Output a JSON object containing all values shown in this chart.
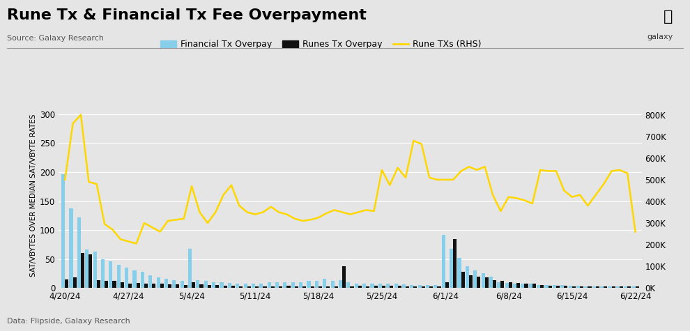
{
  "title": "Rune Tx & Financial Tx Fee Overpayment",
  "source": "Source: Galaxy Research",
  "footnote": "Data: Flipside, Galaxy Research",
  "ylabel_left": "SAT/VBYTES OVER MEDIAN SAT/VBYTE RATES",
  "legend": [
    "Financial Tx Overpay",
    "Runes Tx Overpay",
    "Rune TXs (RHS)"
  ],
  "background_color": "#e5e5e5",
  "ylim_left": [
    0,
    320
  ],
  "ylim_right": [
    0,
    856000
  ],
  "yticks_left": [
    0,
    50,
    100,
    150,
    200,
    250,
    300
  ],
  "yticks_right": [
    0,
    100000,
    200000,
    300000,
    400000,
    500000,
    600000,
    700000,
    800000
  ],
  "ytick_labels_right": [
    "0K",
    "100K",
    "200K",
    "300K",
    "400K",
    "500K",
    "600K",
    "700K",
    "800K"
  ],
  "xtick_labels": [
    "4/20/24",
    "4/27/24",
    "5/4/24",
    "5/11/24",
    "5/18/24",
    "5/25/24",
    "6/1/24",
    "6/8/24",
    "6/15/24",
    "6/22/24"
  ],
  "financial_tx_overpay": [
    196,
    138,
    122,
    67,
    63,
    50,
    46,
    40,
    35,
    30,
    28,
    22,
    18,
    16,
    14,
    12,
    68,
    14,
    12,
    10,
    10,
    9,
    8,
    8,
    7,
    8,
    10,
    10,
    10,
    10,
    10,
    12,
    12,
    16,
    12,
    14,
    10,
    8,
    8,
    8,
    8,
    7,
    7,
    6,
    5,
    5,
    5,
    5,
    92,
    68,
    52,
    38,
    30,
    25,
    20,
    10,
    9,
    8,
    8,
    7,
    5,
    5,
    5,
    5,
    4,
    4,
    3,
    3,
    3,
    3,
    3,
    3,
    3
  ],
  "runes_tx_overpay": [
    15,
    18,
    60,
    58,
    14,
    12,
    12,
    10,
    8,
    9,
    8,
    7,
    8,
    6,
    6,
    5,
    10,
    6,
    5,
    5,
    4,
    4,
    3,
    3,
    3,
    3,
    3,
    3,
    4,
    3,
    3,
    3,
    3,
    3,
    3,
    38,
    3,
    4,
    3,
    4,
    4,
    4,
    4,
    3,
    3,
    3,
    3,
    3,
    10,
    85,
    28,
    22,
    20,
    18,
    14,
    12,
    10,
    9,
    8,
    7,
    5,
    4,
    4,
    4,
    3,
    3,
    3,
    3,
    3,
    3,
    3,
    3,
    3
  ],
  "rune_txs": [
    500000,
    760000,
    800000,
    490000,
    480000,
    295000,
    270000,
    225000,
    215000,
    205000,
    300000,
    280000,
    260000,
    310000,
    315000,
    320000,
    470000,
    350000,
    300000,
    350000,
    430000,
    475000,
    380000,
    350000,
    340000,
    350000,
    375000,
    350000,
    340000,
    320000,
    310000,
    315000,
    325000,
    345000,
    360000,
    350000,
    340000,
    350000,
    360000,
    355000,
    545000,
    475000,
    555000,
    510000,
    680000,
    665000,
    510000,
    500000,
    500000,
    500000,
    540000,
    560000,
    545000,
    560000,
    430000,
    355000,
    420000,
    415000,
    405000,
    390000,
    545000,
    540000,
    540000,
    450000,
    420000,
    430000,
    380000,
    430000,
    480000,
    540000,
    545000,
    530000,
    260000
  ],
  "n_bars": 73,
  "bar_color_financial": "#87CEEB",
  "bar_color_runes": "#111111",
  "line_color_rune_txs": "#FFD700",
  "grid_color": "#ffffff",
  "title_fontsize": 16,
  "source_fontsize": 8,
  "axis_fontsize": 8.5,
  "ylabel_fontsize": 7.5
}
